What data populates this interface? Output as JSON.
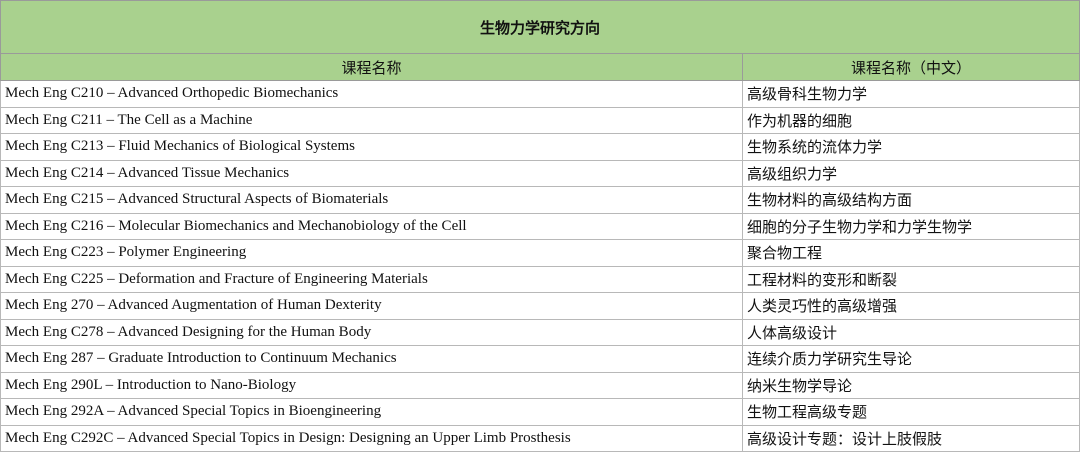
{
  "table": {
    "title": "生物力学研究方向",
    "header": [
      "课程名称",
      "课程名称（中文）"
    ],
    "rows": [
      [
        "Mech Eng C210 – Advanced Orthopedic Biomechanics",
        "高级骨科生物力学"
      ],
      [
        "Mech Eng C211 – The Cell as a Machine",
        "作为机器的细胞"
      ],
      [
        "Mech Eng C213 – Fluid Mechanics of Biological Systems",
        "生物系统的流体力学"
      ],
      [
        "Mech Eng C214 – Advanced Tissue Mechanics",
        "高级组织力学"
      ],
      [
        "Mech Eng C215 – Advanced Structural Aspects of Biomaterials",
        "生物材料的高级结构方面"
      ],
      [
        "Mech Eng C216 – Molecular Biomechanics and Mechanobiology of the Cell",
        "细胞的分子生物力学和力学生物学"
      ],
      [
        "Mech Eng C223 – Polymer Engineering",
        "聚合物工程"
      ],
      [
        "Mech Eng C225 – Deformation and Fracture of Engineering Materials",
        "工程材料的变形和断裂"
      ],
      [
        "Mech Eng 270 – Advanced Augmentation of Human Dexterity",
        "人类灵巧性的高级增强"
      ],
      [
        "Mech Eng C278 – Advanced Designing for the Human Body",
        "人体高级设计"
      ],
      [
        "Mech Eng 287 – Graduate Introduction to Continuum Mechanics",
        "连续介质力学研究生导论"
      ],
      [
        "Mech Eng 290L – Introduction to Nano-Biology",
        "纳米生物学导论"
      ],
      [
        "Mech Eng 292A – Advanced Special Topics in Bioengineering",
        "生物工程高级专题"
      ],
      [
        "Mech Eng C292C – Advanced Special Topics in Design: Designing an Upper Limb Prosthesis",
        "高级设计专题：设计上肢假肢"
      ]
    ]
  }
}
